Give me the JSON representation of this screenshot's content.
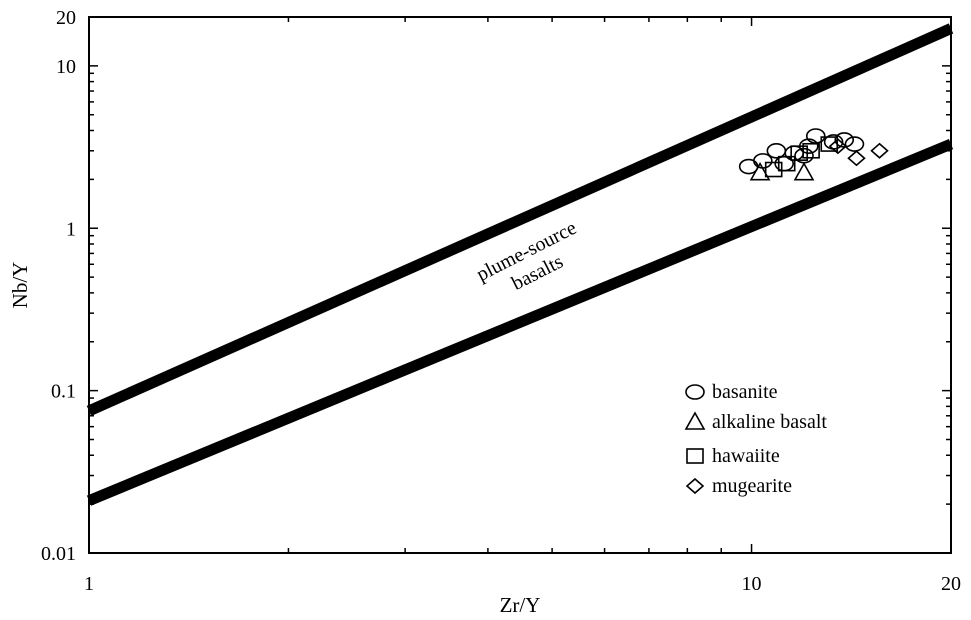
{
  "chart_data": {
    "type": "scatter",
    "xlabel": "Zr/Y",
    "ylabel": "Nb/Y",
    "xscale": "log",
    "yscale": "log",
    "xlim": [
      1,
      20
    ],
    "ylim": [
      0.01,
      20
    ],
    "xticks": [
      {
        "value": 1,
        "label": "1"
      },
      {
        "value": 10,
        "label": "10"
      },
      {
        "value": 20,
        "label": "20"
      }
    ],
    "yticks": [
      {
        "value": 0.01,
        "label": "0.01"
      },
      {
        "value": 0.1,
        "label": "0.1"
      },
      {
        "value": 1,
        "label": "1"
      },
      {
        "value": 10,
        "label": "10"
      },
      {
        "value": 20,
        "label": "20"
      }
    ],
    "grid": false,
    "legend_position": "bottom-right",
    "boundary_lines": [
      {
        "points": [
          [
            1,
            0.075
          ],
          [
            20,
            17
          ]
        ]
      },
      {
        "points": [
          [
            1,
            0.021
          ],
          [
            20,
            3.3
          ]
        ]
      }
    ],
    "annotation": {
      "lines": [
        "plume-source",
        "basalts"
      ]
    },
    "series": [
      {
        "name": "basanite",
        "marker": "circle",
        "points": [
          [
            9.9,
            2.4
          ],
          [
            10.4,
            2.6
          ],
          [
            10.9,
            3.0
          ],
          [
            11.6,
            2.9
          ],
          [
            12.2,
            3.2
          ],
          [
            12.5,
            3.7
          ],
          [
            13.3,
            3.4
          ],
          [
            13.8,
            3.5
          ],
          [
            14.3,
            3.3
          ],
          [
            12.0,
            2.8
          ],
          [
            11.2,
            2.5
          ]
        ]
      },
      {
        "name": "alkaline basalt",
        "marker": "triangle",
        "points": [
          [
            10.3,
            2.2
          ],
          [
            12.0,
            2.2
          ]
        ]
      },
      {
        "name": "hawaiite",
        "marker": "square",
        "points": [
          [
            10.8,
            2.3
          ],
          [
            11.3,
            2.5
          ],
          [
            11.8,
            2.9
          ],
          [
            12.3,
            3.0
          ],
          [
            13.1,
            3.3
          ]
        ]
      },
      {
        "name": "mugearite",
        "marker": "diamond",
        "points": [
          [
            14.4,
            2.7
          ],
          [
            15.6,
            3.0
          ],
          [
            13.5,
            3.2
          ]
        ]
      }
    ]
  }
}
